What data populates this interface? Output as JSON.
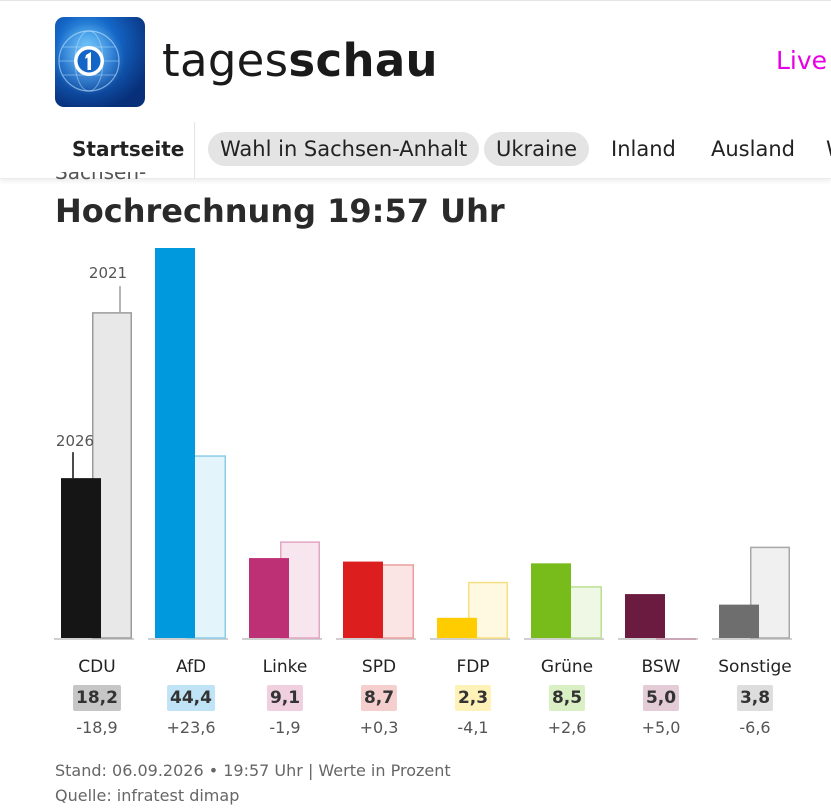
{
  "header": {
    "brand_light": "tages",
    "brand_bold": "schau",
    "live_label": "Live"
  },
  "nav": {
    "items": [
      "Startseite",
      "Wahl in Sachsen-Anhalt",
      "Ukraine",
      "Inland",
      "Ausland",
      "W"
    ]
  },
  "peek_text": "Sachsen-Anhalt",
  "headline": "Hochrechnung 19:57 Uhr",
  "chart_data": {
    "type": "bar",
    "categories": [
      "CDU",
      "AfD",
      "Linke",
      "SPD",
      "FDP",
      "Grüne",
      "BSW",
      "Sonstige"
    ],
    "series": [
      {
        "name": "2026",
        "values": [
          18.2,
          44.4,
          9.1,
          8.7,
          2.3,
          8.5,
          5.0,
          3.8
        ]
      },
      {
        "name": "2021",
        "values": [
          37.1,
          20.8,
          11.0,
          8.4,
          6.4,
          5.9,
          0.0,
          10.4
        ]
      }
    ],
    "value_labels": [
      "18,2",
      "44,4",
      "9,1",
      "8,7",
      "2,3",
      "8,5",
      "5,0",
      "3,8"
    ],
    "diff_labels": [
      "-18,9",
      "+23,6",
      "-1,9",
      "+0,3",
      "-4,1",
      "+2,6",
      "+5,0",
      "-6,6"
    ],
    "colors": [
      "#151515",
      "#0099dd",
      "#be3075",
      "#dc1e1e",
      "#ffcc00",
      "#78bc1b",
      "#6b1b3f",
      "#6e6e6e"
    ],
    "light_colors": [
      "#e8e8e8",
      "#e4f4fb",
      "#f8e6ee",
      "#fbe4e4",
      "#fff9e1",
      "#eef8e4",
      "#f0e7ec",
      "#f0f0f0"
    ],
    "border_colors": [
      "#9c9c9c",
      "#8ccce8",
      "#e3a6c4",
      "#ed9d9d",
      "#f7de80",
      "#bbdf92",
      "#c9a5b5",
      "#a8a8a8"
    ],
    "badge_colors": [
      "#c6c6c6",
      "#c0e4f5",
      "#f0cfdf",
      "#f5cece",
      "#fff2b8",
      "#d9efc4",
      "#e3ccd6",
      "#dddddd"
    ],
    "annotations": [
      "2026",
      "2021"
    ],
    "ylim": [
      0,
      44.4
    ]
  },
  "footer": {
    "stand": "Stand: 06.09.2026 • 19:57 Uhr | Werte in Prozent",
    "source": "Quelle: infratest dimap"
  }
}
